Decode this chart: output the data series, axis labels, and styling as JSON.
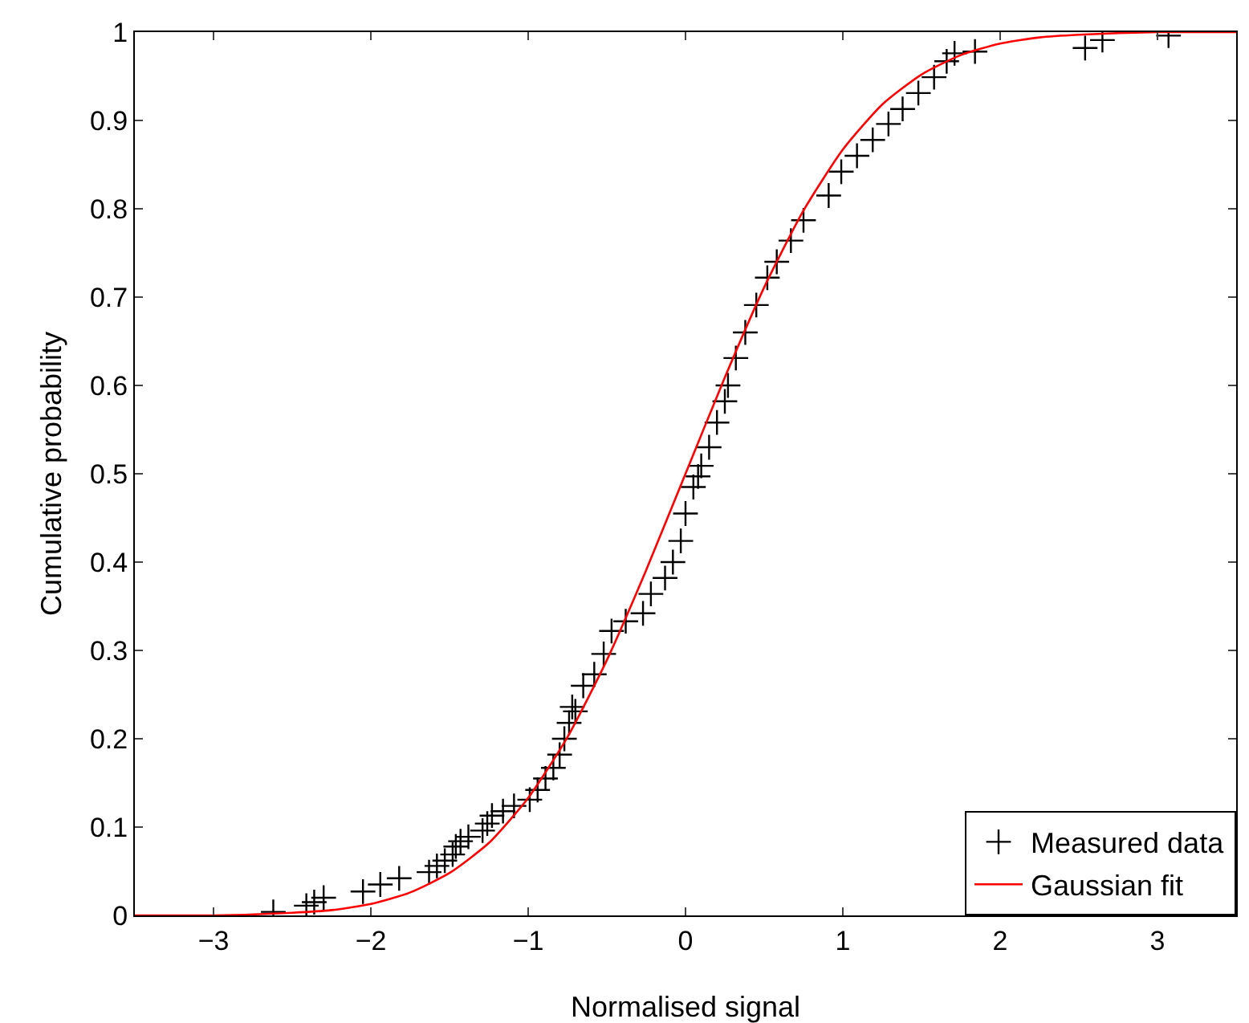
{
  "chart_data": {
    "type": "scatter",
    "xlabel": "Normalised signal",
    "ylabel": "Cumulative probability",
    "xlim": [
      -3.5,
      3.5
    ],
    "ylim": [
      0,
      1
    ],
    "xticks": [
      {
        "value": -3,
        "label": "−3"
      },
      {
        "value": -2,
        "label": "−2"
      },
      {
        "value": -1,
        "label": "−1"
      },
      0,
      1,
      2,
      3
    ],
    "yticks": [
      0,
      0.1,
      0.2,
      0.3,
      0.4,
      0.5,
      0.6,
      0.7,
      0.8,
      0.9,
      1
    ],
    "grid": false,
    "legend": "bottom right",
    "series": [
      {
        "name": "Measured data",
        "type": "scatter",
        "marker": "cross",
        "color": "#000000",
        "x": [
          -2.62,
          -2.41,
          -2.36,
          -2.3,
          -2.05,
          -1.94,
          -1.82,
          -1.63,
          -1.58,
          -1.53,
          -1.48,
          -1.46,
          -1.43,
          -1.38,
          -1.29,
          -1.26,
          -1.23,
          -1.16,
          -1.09,
          -0.99,
          -0.94,
          -0.89,
          -0.84,
          -0.8,
          -0.77,
          -0.74,
          -0.72,
          -0.7,
          -0.65,
          -0.58,
          -0.52,
          -0.47,
          -0.38,
          -0.27,
          -0.22,
          -0.13,
          -0.08,
          -0.03,
          0.0,
          0.05,
          0.08,
          0.1,
          0.15,
          0.2,
          0.25,
          0.27,
          0.32,
          0.38,
          0.45,
          0.52,
          0.58,
          0.67,
          0.75,
          0.91,
          0.99,
          1.09,
          1.19,
          1.29,
          1.38,
          1.48,
          1.58,
          1.66,
          1.71,
          1.84,
          2.54,
          2.65,
          3.07
        ],
        "values": [
          0.004,
          0.011,
          0.015,
          0.02,
          0.027,
          0.035,
          0.042,
          0.049,
          0.056,
          0.062,
          0.069,
          0.078,
          0.084,
          0.089,
          0.096,
          0.104,
          0.113,
          0.118,
          0.124,
          0.131,
          0.142,
          0.155,
          0.167,
          0.182,
          0.2,
          0.218,
          0.236,
          0.231,
          0.26,
          0.273,
          0.296,
          0.322,
          0.333,
          0.342,
          0.364,
          0.382,
          0.4,
          0.424,
          0.455,
          0.485,
          0.497,
          0.509,
          0.53,
          0.558,
          0.582,
          0.6,
          0.631,
          0.66,
          0.691,
          0.722,
          0.74,
          0.764,
          0.787,
          0.815,
          0.842,
          0.86,
          0.878,
          0.896,
          0.913,
          0.931,
          0.949,
          0.967,
          0.976,
          0.978,
          0.982,
          0.991,
          0.996
        ]
      },
      {
        "name": "Gaussian fit",
        "type": "line",
        "marker": "none",
        "line_style": "solid",
        "color": "#ff0000",
        "x": [
          -3.5,
          -3,
          -2.5,
          -2.25,
          -2,
          -1.75,
          -1.5,
          -1.25,
          -1,
          -0.75,
          -0.5,
          -0.25,
          0,
          0.25,
          0.5,
          0.75,
          1,
          1.25,
          1.5,
          1.75,
          2,
          2.25,
          2.5,
          3,
          3.5
        ],
        "values": [
          0,
          0,
          0.003,
          0.006,
          0.013,
          0.026,
          0.048,
          0.082,
          0.133,
          0.202,
          0.289,
          0.391,
          0.5,
          0.609,
          0.711,
          0.798,
          0.867,
          0.918,
          0.952,
          0.974,
          0.987,
          0.994,
          0.997,
          1,
          1
        ]
      }
    ]
  }
}
